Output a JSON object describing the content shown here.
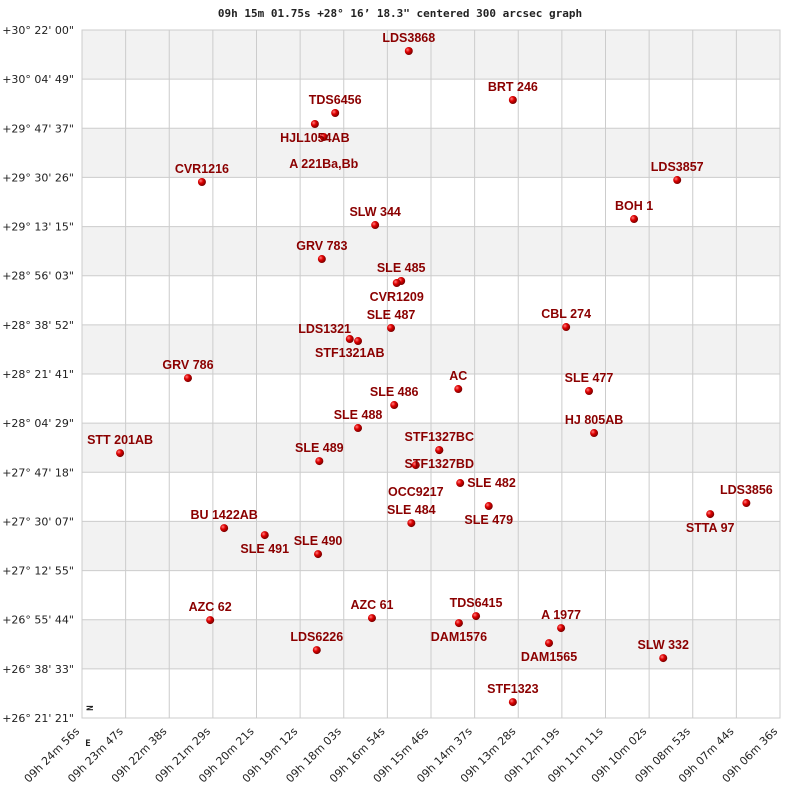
{
  "chart_data": {
    "type": "scatter",
    "title": "09h 15m 01.75s +28° 16’ 18.3\" centered 300 arcsec graph",
    "xlabel": "",
    "ylabel": "",
    "x_reversed": true,
    "grid": true,
    "banded_rows": true,
    "compass": {
      "north": "N",
      "east": "E"
    },
    "colors": {
      "point": "#dd0000",
      "label": "#8b0000",
      "band": "#f2f2f2",
      "grid": "#cccccc"
    },
    "x_ticks": [
      "09h 24m 56s",
      "09h 23m 47s",
      "09h 22m 38s",
      "09h 21m 29s",
      "09h 20m 21s",
      "09h 19m 12s",
      "09h 18m 03s",
      "09h 16m 54s",
      "09h 15m 46s",
      "09h 14m 37s",
      "09h 13m 28s",
      "09h 12m 19s",
      "09h 11m 11s",
      "09h 10m 02s",
      "09h 08m 53s",
      "09h 07m 44s",
      "09h 06m 36s"
    ],
    "y_ticks": [
      "+30° 22' 00\"",
      "+30° 04' 49\"",
      "+29° 47' 37\"",
      "+29° 30' 26\"",
      "+29° 13' 15\"",
      "+28° 56' 03\"",
      "+28° 38' 52\"",
      "+28° 21' 41\"",
      "+28° 04' 29\"",
      "+27° 47' 18\"",
      "+27° 30' 07\"",
      "+27° 12' 55\"",
      "+26° 55' 44\"",
      "+26° 38' 33\"",
      "+26° 21' 21\""
    ],
    "points": [
      {
        "label": "LDS3868",
        "ra": "09h 16m 21s",
        "dec": "+30° 14' 39\""
      },
      {
        "label": "BRT 246",
        "ra": "09h 13m 37s",
        "dec": "+29° 57' 31\""
      },
      {
        "label": "TDS6456",
        "ra": "09h 18m 17s",
        "dec": "+29° 52' 58\""
      },
      {
        "label": "HJL1054AB",
        "ra": "09h 18m 49s",
        "dec": "+29° 49' 07\""
      },
      {
        "label": "A  221Ba,Bb",
        "ra": "09h 18m 35s",
        "dec": "+29° 44' 34\""
      },
      {
        "label": "CVR1216",
        "ra": "09h 21m 47s",
        "dec": "+29° 28' 50\""
      },
      {
        "label": "LDS3857",
        "ra": "09h 09m 18s",
        "dec": "+29° 29' 31\""
      },
      {
        "label": "BOH   1",
        "ra": "09h 10m 26s",
        "dec": "+29° 15' 53\""
      },
      {
        "label": "SLW 344",
        "ra": "09h 17m 14s",
        "dec": "+29° 13' 47\""
      },
      {
        "label": "GRV 783",
        "ra": "09h 18m 38s",
        "dec": "+29° 01' 53\""
      },
      {
        "label": "SLE 485",
        "ra": "09h 16m 33s",
        "dec": "+28° 54' 12\""
      },
      {
        "label": "CVR1209",
        "ra": "09h 16m 40s",
        "dec": "+28° 53' 30\""
      },
      {
        "label": "SLE 487",
        "ra": "09h 16m 49s",
        "dec": "+28° 37' 45\""
      },
      {
        "label": "STF1321AB",
        "ra": "09h 17m 54s",
        "dec": "+28° 33' 54\""
      },
      {
        "label": "LDS1321",
        "ra": "09h 17m 41s",
        "dec": "+28° 33' 12\""
      },
      {
        "label": "CBL 274",
        "ra": "09h 12m 13s",
        "dec": "+28° 38' 06\""
      },
      {
        "label": "GRV 786",
        "ra": "09h 22m 09s",
        "dec": "+28° 20' 15\""
      },
      {
        "label": "AC",
        "ra": "09h 15m 03s",
        "dec": "+28° 16' 25\""
      },
      {
        "label": "SLE 477",
        "ra": "09h 11m 37s",
        "dec": "+28° 15' 43\""
      },
      {
        "label": "SLE 486",
        "ra": "09h 16m 44s",
        "dec": "+28° 10' 49\""
      },
      {
        "label": "SLE 488",
        "ra": "09h 17m 41s",
        "dec": "+28° 02' 46\""
      },
      {
        "label": "HJ  805AB",
        "ra": "09h 11m 29s",
        "dec": "+28° 01' 01\""
      },
      {
        "label": "STT 201AB",
        "ra": "09h 23m 56s",
        "dec": "+27° 54' 01\""
      },
      {
        "label": "STF1327BC",
        "ra": "09h 15m 33s",
        "dec": "+27° 55' 04\""
      },
      {
        "label": "STF1327BD",
        "ra": "09h 15m 33s",
        "dec": "+27° 55' 04\""
      },
      {
        "label": "OCC9217",
        "ra": "09h 16m 10s",
        "dec": "+27° 49' 49\""
      },
      {
        "label": "SLE 489",
        "ra": "09h 18m 42s",
        "dec": "+27° 51' 13\""
      },
      {
        "label": "SLE 482",
        "ra": "09h 15m 00s",
        "dec": "+27° 43' 32\""
      },
      {
        "label": "SLE 479",
        "ra": "09h 14m 15s",
        "dec": "+27° 35' 29\""
      },
      {
        "label": "LDS3856",
        "ra": "09h 07m 29s",
        "dec": "+27° 36' 32\""
      },
      {
        "label": "STTA 97",
        "ra": "09h 08m 26s",
        "dec": "+27° 32' 41\""
      },
      {
        "label": "BU 1422AB",
        "ra": "09h 21m 12s",
        "dec": "+27° 27' 47\""
      },
      {
        "label": "SLE 491",
        "ra": "09h 20m 08s",
        "dec": "+27° 25' 20\""
      },
      {
        "label": "SLE 484",
        "ra": "09h 16m 17s",
        "dec": "+27° 29' 32\""
      },
      {
        "label": "SLE 490",
        "ra": "09h 18m 44s",
        "dec": "+27° 18' 41\""
      },
      {
        "label": "AZC  62",
        "ra": "09h 21m 34s",
        "dec": "+26° 55' 36\""
      },
      {
        "label": "AZC  61",
        "ra": "09h 17m 19s",
        "dec": "+26° 56' 18\""
      },
      {
        "label": "TDS6415",
        "ra": "09h 14m 35s",
        "dec": "+26° 57' 00\""
      },
      {
        "label": "DAM1576",
        "ra": "09h 15m 02s",
        "dec": "+26° 54' 33\""
      },
      {
        "label": "A  1977",
        "ra": "09h 12m 21s",
        "dec": "+26° 52' 48\""
      },
      {
        "label": "DAM1565",
        "ra": "09h 12m 40s",
        "dec": "+26° 47' 33\""
      },
      {
        "label": "LDS6226",
        "ra": "09h 18m 46s",
        "dec": "+26° 45' 06\""
      },
      {
        "label": "SLW 332",
        "ra": "09h 09m 40s",
        "dec": "+26° 42' 18\""
      },
      {
        "label": "STF1323",
        "ra": "09h 13m 37s",
        "dec": "+26° 26' 55\""
      }
    ]
  }
}
